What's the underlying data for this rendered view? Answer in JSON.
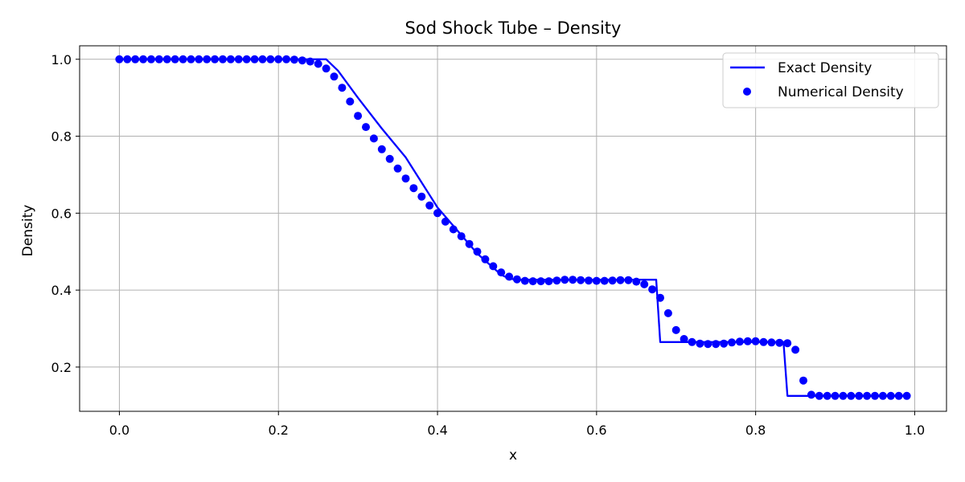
{
  "chart_data": {
    "type": "line",
    "title": "Sod Shock Tube – Density",
    "xlabel": "x",
    "ylabel": "Density",
    "xlim": [
      -0.05,
      1.04
    ],
    "ylim": [
      0.085,
      1.035
    ],
    "xticks": [
      0.0,
      0.2,
      0.4,
      0.6,
      0.8,
      1.0
    ],
    "xtick_labels": [
      "0.0",
      "0.2",
      "0.4",
      "0.6",
      "0.8",
      "1.0"
    ],
    "yticks": [
      0.2,
      0.4,
      0.6,
      0.8,
      1.0
    ],
    "ytick_labels": [
      "0.2",
      "0.4",
      "0.6",
      "0.8",
      "1.0"
    ],
    "grid": true,
    "legend_position": "top-right",
    "colors": {
      "series": "#0000ff",
      "grid": "#b0b0b0",
      "axes": "#000000"
    },
    "series": [
      {
        "name": "Exact Density",
        "kind": "line",
        "x": [
          0.0,
          0.26,
          0.265,
          0.275,
          0.3,
          0.33,
          0.36,
          0.4,
          0.45,
          0.48,
          0.49,
          0.5,
          0.55,
          0.6,
          0.65,
          0.67,
          0.675,
          0.68,
          0.7,
          0.75,
          0.8,
          0.835,
          0.84,
          0.845,
          0.9,
          0.99
        ],
        "y": [
          1.0,
          1.0,
          0.99,
          0.97,
          0.9,
          0.82,
          0.745,
          0.615,
          0.495,
          0.44,
          0.43,
          0.427,
          0.427,
          0.427,
          0.427,
          0.427,
          0.427,
          0.265,
          0.265,
          0.265,
          0.265,
          0.265,
          0.125,
          0.125,
          0.125,
          0.125
        ]
      },
      {
        "name": "Numerical Density",
        "kind": "scatter",
        "x": [
          0.0,
          0.01,
          0.02,
          0.03,
          0.04,
          0.05,
          0.06,
          0.07,
          0.08,
          0.09,
          0.1,
          0.11,
          0.12,
          0.13,
          0.14,
          0.15,
          0.16,
          0.17,
          0.18,
          0.19,
          0.2,
          0.21,
          0.22,
          0.23,
          0.24,
          0.25,
          0.26,
          0.27,
          0.28,
          0.29,
          0.3,
          0.31,
          0.32,
          0.33,
          0.34,
          0.35,
          0.36,
          0.37,
          0.38,
          0.39,
          0.4,
          0.41,
          0.42,
          0.43,
          0.44,
          0.45,
          0.46,
          0.47,
          0.48,
          0.49,
          0.5,
          0.51,
          0.52,
          0.53,
          0.54,
          0.55,
          0.56,
          0.57,
          0.58,
          0.59,
          0.6,
          0.61,
          0.62,
          0.63,
          0.64,
          0.65,
          0.66,
          0.67,
          0.68,
          0.69,
          0.7,
          0.71,
          0.72,
          0.73,
          0.74,
          0.75,
          0.76,
          0.77,
          0.78,
          0.79,
          0.8,
          0.81,
          0.82,
          0.83,
          0.84,
          0.85,
          0.86,
          0.87,
          0.88,
          0.89,
          0.9,
          0.91,
          0.92,
          0.93,
          0.94,
          0.95,
          0.96,
          0.97,
          0.98,
          0.99
        ],
        "y": [
          1.0,
          1.0,
          1.0,
          1.0,
          1.0,
          1.0,
          1.0,
          1.0,
          1.0,
          1.0,
          1.0,
          1.0,
          1.0,
          1.0,
          1.0,
          1.0,
          1.0,
          1.0,
          1.0,
          1.0,
          1.0,
          1.0,
          0.999,
          0.997,
          0.994,
          0.988,
          0.976,
          0.955,
          0.926,
          0.89,
          0.853,
          0.824,
          0.794,
          0.766,
          0.741,
          0.716,
          0.69,
          0.665,
          0.643,
          0.62,
          0.6,
          0.578,
          0.558,
          0.54,
          0.52,
          0.5,
          0.48,
          0.462,
          0.446,
          0.435,
          0.428,
          0.424,
          0.423,
          0.423,
          0.423,
          0.425,
          0.427,
          0.427,
          0.426,
          0.425,
          0.424,
          0.424,
          0.425,
          0.426,
          0.426,
          0.422,
          0.415,
          0.402,
          0.38,
          0.34,
          0.296,
          0.273,
          0.265,
          0.261,
          0.26,
          0.26,
          0.261,
          0.264,
          0.266,
          0.267,
          0.267,
          0.265,
          0.264,
          0.263,
          0.262,
          0.245,
          0.165,
          0.128,
          0.125,
          0.125,
          0.125,
          0.125,
          0.125,
          0.125,
          0.125,
          0.125,
          0.125,
          0.125,
          0.125,
          0.125
        ]
      }
    ]
  }
}
